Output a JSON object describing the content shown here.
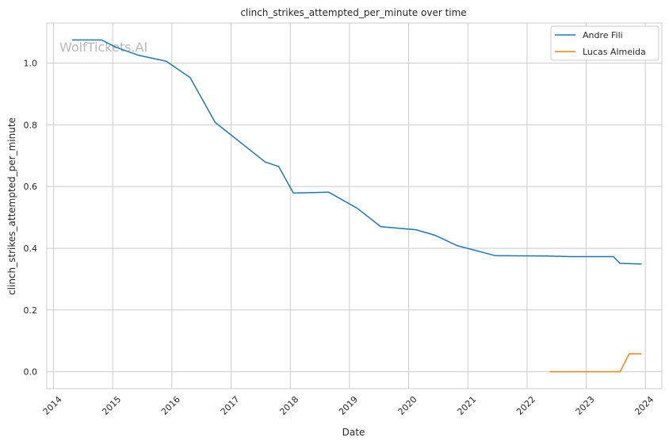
{
  "chart_data": {
    "type": "line",
    "title": "clinch_strikes_attempted_per_minute over time",
    "xlabel": "Date",
    "ylabel": "clinch_strikes_attempted_per_minute",
    "watermark": "WolfTickets.AI",
    "xlim": [
      "2013-11-20",
      "2024-04-12"
    ],
    "ylim": [
      -0.055,
      1.13
    ],
    "x_ticks": [
      "2014",
      "2015",
      "2016",
      "2017",
      "2018",
      "2019",
      "2020",
      "2021",
      "2022",
      "2023",
      "2024"
    ],
    "y_ticks": [
      "0.0",
      "0.2",
      "0.4",
      "0.6",
      "0.8",
      "1.0"
    ],
    "grid": true,
    "legend_position": "top-right",
    "series": [
      {
        "name": "Andre Fili",
        "color": "#1f77b4",
        "points": [
          [
            "2014-04-26",
            1.075
          ],
          [
            "2014-10-25",
            1.075
          ],
          [
            "2015-01-18",
            1.052
          ],
          [
            "2015-06-06",
            1.026
          ],
          [
            "2015-11-28",
            1.006
          ],
          [
            "2016-04-23",
            0.953
          ],
          [
            "2016-09-24",
            0.808
          ],
          [
            "2017-07-29",
            0.68
          ],
          [
            "2017-10-21",
            0.665
          ],
          [
            "2018-01-20",
            0.579
          ],
          [
            "2018-08-25",
            0.582
          ],
          [
            "2019-02-17",
            0.53
          ],
          [
            "2019-07-13",
            0.47
          ],
          [
            "2020-02-15",
            0.46
          ],
          [
            "2020-06-13",
            0.442
          ],
          [
            "2020-10-24",
            0.409
          ],
          [
            "2021-06-19",
            0.376
          ],
          [
            "2022-05-07",
            0.375
          ],
          [
            "2022-10-01",
            0.373
          ],
          [
            "2023-06-17",
            0.373
          ],
          [
            "2023-07-29",
            0.351
          ],
          [
            "2023-12-09",
            0.349
          ]
        ]
      },
      {
        "name": "Lucas Almeida",
        "color": "#ff7f0e",
        "points": [
          [
            "2022-05-21",
            0.0
          ],
          [
            "2023-07-29",
            0.0
          ],
          [
            "2023-09-23",
            0.058
          ],
          [
            "2023-12-09",
            0.058
          ]
        ]
      }
    ]
  }
}
